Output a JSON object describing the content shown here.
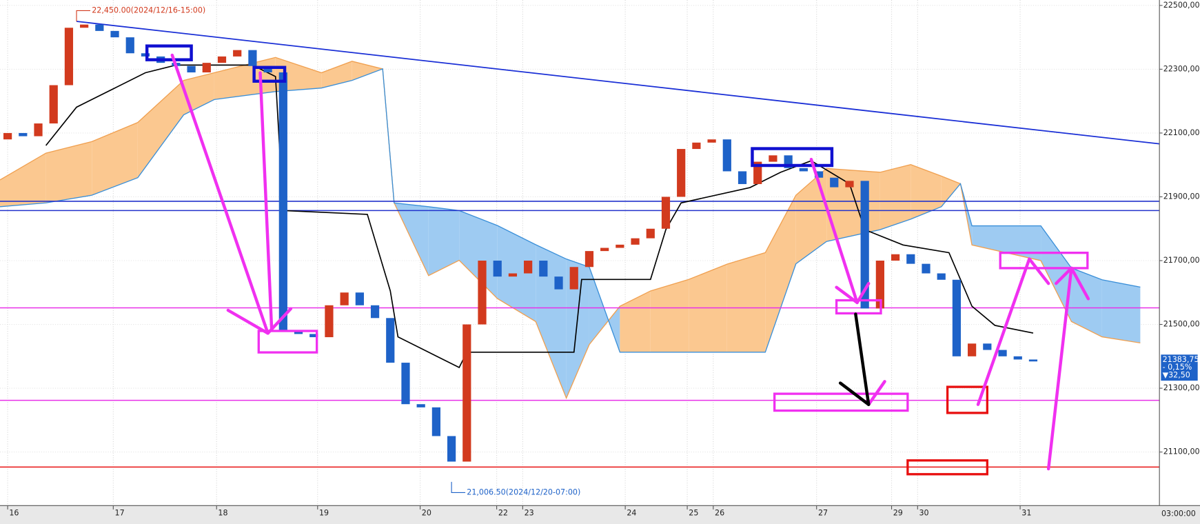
{
  "chart_data": {
    "type": "candlestick",
    "xlim": [
      0,
      75.75
    ],
    "ylim": [
      20932,
      22517
    ],
    "grid": true,
    "up_color": "#d23a1e",
    "down_color": "#1e62c8",
    "x": [
      0.5,
      1.5,
      2.5,
      3.5,
      4.5,
      5.5,
      6.5,
      7.5,
      8.5,
      9.5,
      10.5,
      11.5,
      12.5,
      13.5,
      14.5,
      15.5,
      16.5,
      17.5,
      18.5,
      19.5,
      20.5,
      21.5,
      22.5,
      23.5,
      24.5,
      25.5,
      26.5,
      27.5,
      28.5,
      29.5,
      30.5,
      31.5,
      32.5,
      33.5,
      34.5,
      35.5,
      36.5,
      37.5,
      38.5,
      39.5,
      40.5,
      41.5,
      42.5,
      43.5,
      44.5,
      45.5,
      46.5,
      47.5,
      48.5,
      49.5,
      50.5,
      51.5,
      52.5,
      53.5,
      54.5,
      55.5,
      56.5,
      57.5,
      58.5,
      59.5,
      60.5,
      61.5,
      62.5,
      63.5,
      64.5,
      65.5,
      66.5,
      67.5
    ],
    "open": [
      22080,
      22100,
      22090,
      22130,
      22250,
      22430,
      22440,
      22420,
      22400,
      22350,
      22340,
      22320,
      22310,
      22290,
      22320,
      22340,
      22360,
      22310,
      22290,
      21480,
      21470,
      21460,
      21560,
      21600,
      21560,
      21520,
      21380,
      21250,
      21240,
      21150,
      21070,
      21500,
      21700,
      21650,
      21660,
      21700,
      21650,
      21610,
      21680,
      21730,
      21740,
      21750,
      21770,
      21800,
      21900,
      22050,
      22070,
      22080,
      21980,
      21940,
      22010,
      22030,
      21990,
      21980,
      21960,
      21930,
      21950,
      21550,
      21700,
      21720,
      21690,
      21660,
      21640,
      21400,
      21440,
      21420,
      21400,
      21390
    ],
    "close": [
      22100,
      22090,
      22130,
      22250,
      22430,
      22440,
      22420,
      22400,
      22350,
      22340,
      22320,
      22310,
      22290,
      22320,
      22340,
      22360,
      22310,
      22290,
      21480,
      21470,
      21460,
      21560,
      21600,
      21560,
      21520,
      21380,
      21250,
      21240,
      21150,
      21070,
      21500,
      21700,
      21650,
      21660,
      21700,
      21650,
      21610,
      21680,
      21730,
      21740,
      21750,
      21770,
      21800,
      21900,
      22050,
      22070,
      22080,
      21980,
      21940,
      22010,
      22030,
      21990,
      21980,
      21960,
      21930,
      21950,
      21550,
      21700,
      21720,
      21690,
      21660,
      21640,
      21400,
      21440,
      21420,
      21400,
      21390,
      21384
    ],
    "base_line": {
      "color": "#000000",
      "x": [
        3,
        5,
        7.5,
        9.5,
        11.5,
        16.5,
        18,
        18.5,
        24,
        25.5,
        26,
        30,
        30.5,
        37.5,
        38,
        42.5,
        43.5,
        44.5,
        49,
        51,
        53,
        55.5,
        56.5,
        59,
        62,
        63.5,
        65,
        67.5
      ],
      "values": [
        22061,
        22181,
        22241,
        22289,
        22313,
        22313,
        22277,
        21857,
        21845,
        21605,
        21461,
        21365,
        21413,
        21413,
        21641,
        21641,
        21797,
        21881,
        21929,
        21977,
        22013,
        21941,
        21797,
        21749,
        21725,
        21557,
        21497,
        21473
      ]
    },
    "cloud": {
      "color_up": "#fbc890",
      "color_down": "#9ecbf2",
      "line_a_color": "#f0a050",
      "line_b_color": "#3a8fd8",
      "x": [
        0,
        3,
        6,
        9,
        12,
        14,
        18,
        21,
        23,
        25,
        25.75,
        28,
        30,
        32.5,
        35,
        37,
        38.5,
        40.5,
        42.5,
        45,
        47.5,
        50,
        52,
        54,
        57.5,
        59.5,
        61.5,
        62.75,
        63.5,
        68,
        70,
        72,
        74.5
      ],
      "span_a": [
        21953,
        22037,
        22073,
        22133,
        22265,
        22289,
        22337,
        22289,
        22325,
        22301,
        21881,
        21653,
        21701,
        21581,
        21509,
        21269,
        21437,
        21557,
        21605,
        21641,
        21689,
        21725,
        21905,
        21989,
        21977,
        22001,
        21965,
        21941,
        21749,
        21700,
        21509,
        21461,
        21442
      ],
      "span_b": [
        21869,
        21881,
        21905,
        21960,
        22157,
        22205,
        22230,
        22241,
        22265,
        22301,
        21881,
        21869,
        21857,
        21810,
        21750,
        21705,
        21680,
        21413,
        21413,
        21413,
        21413,
        21413,
        21690,
        21760,
        21797,
        21830,
        21869,
        21941,
        21809,
        21809,
        21677,
        21640,
        21617
      ]
    },
    "trendline": {
      "color": "#1a2fd6",
      "x": [
        5,
        75.75
      ],
      "values": [
        22450,
        22066
      ]
    },
    "hlines": [
      {
        "value": 21886,
        "color": "#2233cc"
      },
      {
        "value": 21857,
        "color": "#2233cc"
      },
      {
        "value": 21552,
        "color": "#e830e8"
      },
      {
        "value": 21262,
        "color": "#e830e8"
      },
      {
        "value": 21053,
        "color": "#e81010"
      }
    ],
    "yticks": [
      {
        "value": 22500,
        "label": "22500,00"
      },
      {
        "value": 22300,
        "label": "22300,00"
      },
      {
        "value": 22100,
        "label": "22100,00"
      },
      {
        "value": 21900,
        "label": "21900,00"
      },
      {
        "value": 21700,
        "label": "21700,00"
      },
      {
        "value": 21500,
        "label": "21500,00"
      },
      {
        "value": 21300,
        "label": "21300,00"
      },
      {
        "value": 21100,
        "label": "21100,00"
      }
    ],
    "xticks": [
      {
        "value": 0.5,
        "label": "16"
      },
      {
        "value": 7.4,
        "label": "17"
      },
      {
        "value": 14.15,
        "label": "18"
      },
      {
        "value": 20.75,
        "label": "19"
      },
      {
        "value": 27.45,
        "label": "20"
      },
      {
        "value": 32.45,
        "label": "22"
      },
      {
        "value": 34.15,
        "label": "23"
      },
      {
        "value": 40.85,
        "label": "24"
      },
      {
        "value": 44.9,
        "label": "25"
      },
      {
        "value": 46.6,
        "label": "26"
      },
      {
        "value": 53.35,
        "label": "27"
      },
      {
        "value": 58.25,
        "label": "29"
      },
      {
        "value": 59.95,
        "label": "30"
      },
      {
        "value": 66.65,
        "label": "31"
      }
    ],
    "time_label": "03:00:00",
    "high": {
      "x": 5,
      "value": 22450,
      "label": "22,450.00(2024/12/16-15:00)"
    },
    "low": {
      "x": 29.5,
      "value": 21006.5,
      "label": "21,006.50(2024/12/20-07:00)"
    },
    "last_price": {
      "value": 21383.75,
      "label": "21383,75",
      "change": "- 0,15%",
      "delta": "▼32,50"
    }
  }
}
